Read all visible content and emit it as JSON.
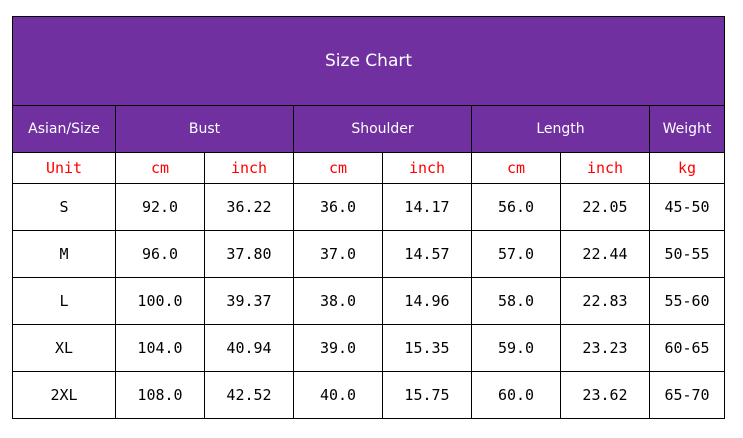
{
  "title": "Size Chart",
  "headers": [
    "Asian/Size",
    "Bust",
    "Shoulder",
    "Length",
    "Weight"
  ],
  "units": [
    "Unit",
    "cm",
    "inch",
    "cm",
    "inch",
    "cm",
    "inch",
    "kg"
  ],
  "rows": [
    [
      "S",
      "92.0",
      "36.22",
      "36.0",
      "14.17",
      "56.0",
      "22.05",
      "45-50"
    ],
    [
      "M",
      "96.0",
      "37.80",
      "37.0",
      "14.57",
      "57.0",
      "22.44",
      "50-55"
    ],
    [
      "L",
      "100.0",
      "39.37",
      "38.0",
      "14.96",
      "58.0",
      "22.83",
      "55-60"
    ],
    [
      "XL",
      "104.0",
      "40.94",
      "39.0",
      "15.35",
      "59.0",
      "23.23",
      "60-65"
    ],
    [
      "2XL",
      "108.0",
      "42.52",
      "40.0",
      "15.75",
      "60.0",
      "23.62",
      "65-70"
    ]
  ],
  "colors": {
    "header_bg": "#7030a0",
    "unit_text": "#ff0000"
  }
}
